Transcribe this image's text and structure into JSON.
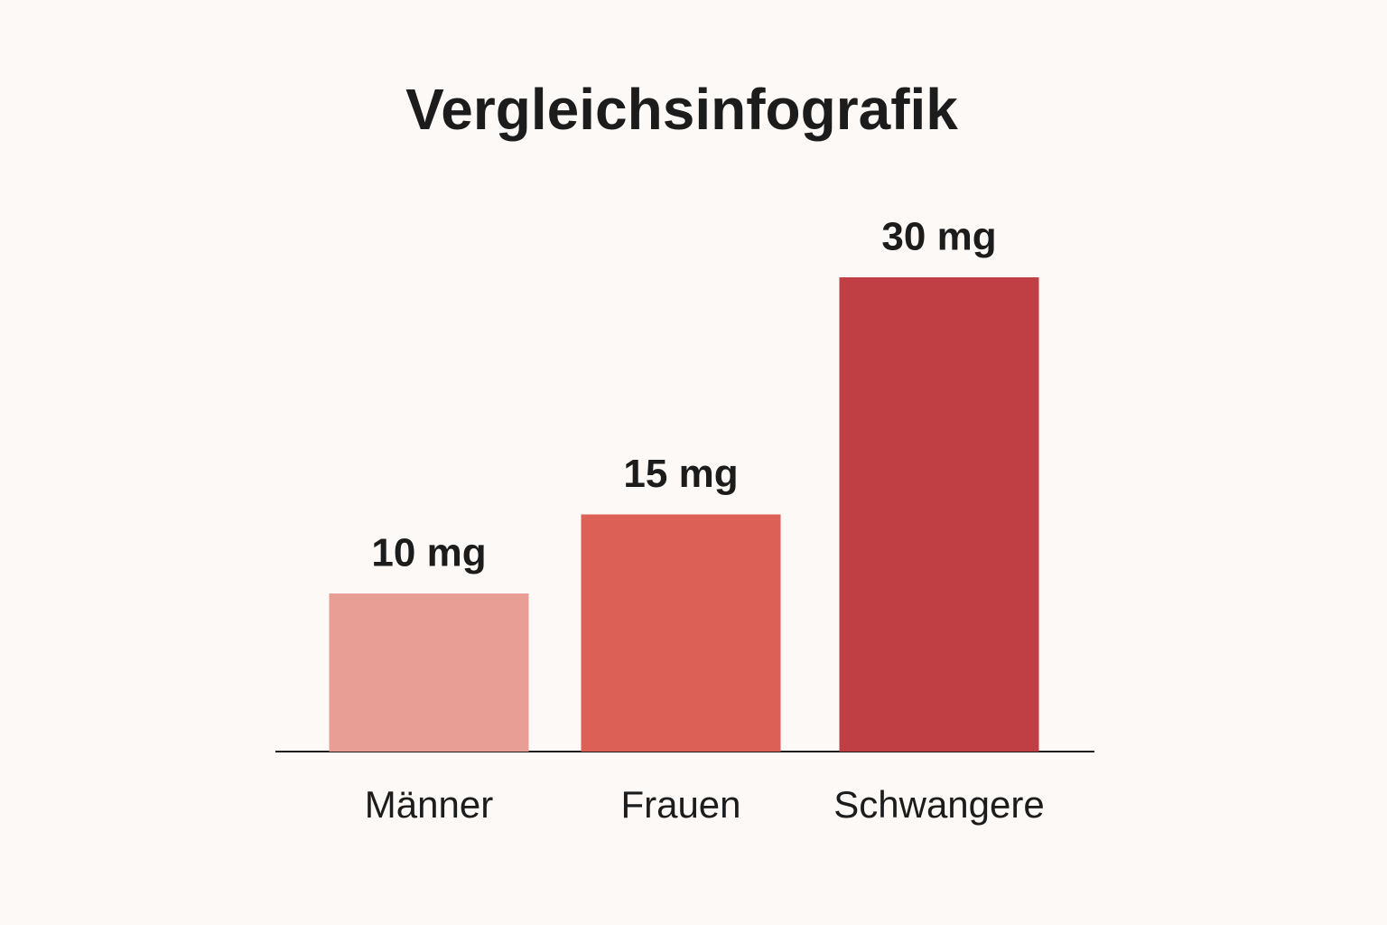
{
  "chart_data": {
    "type": "bar",
    "title": "Vergleichsinfografik",
    "categories": [
      "Männer",
      "Frauen",
      "Schwangere"
    ],
    "values": [
      10,
      15,
      30
    ],
    "value_labels": [
      "10 mg",
      "15 mg",
      "30 mg"
    ],
    "colors": [
      "#e89d95",
      "#dc6055",
      "#c03f45"
    ]
  }
}
